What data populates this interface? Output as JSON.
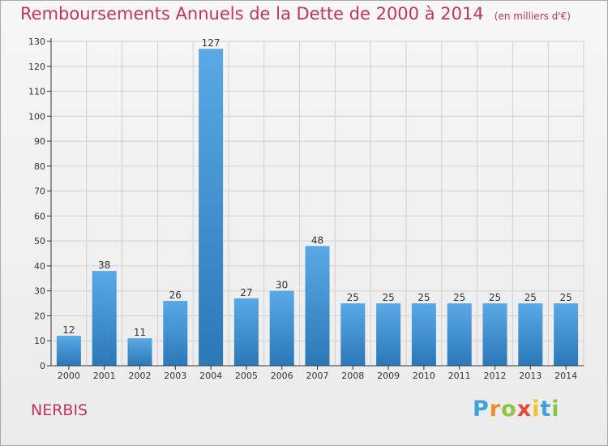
{
  "title": "Remboursements Annuels de la Dette de 2000 à 2014",
  "title_unit": "(en milliers d'€)",
  "commune": "NERBIS",
  "logo": {
    "letters": [
      "P",
      "r",
      "o",
      "x",
      "i",
      "t",
      "i"
    ],
    "colors": [
      "#3ba3d9",
      "#f28c28",
      "#8cc63f",
      "#e8483b",
      "#f7c320",
      "#3ba3d9",
      "#8cc63f"
    ]
  },
  "colors": {
    "title": "#bf3463",
    "bar_light": "#5aa9e6",
    "bar_dark": "#2b78b8",
    "grid": "#d0d0d0",
    "axis": "#333333"
  },
  "chart_data": {
    "type": "bar",
    "title": "Remboursements Annuels de la Dette de 2000 à 2014",
    "subtitle": "(en milliers d'€)",
    "xlabel": "",
    "ylabel": "",
    "categories": [
      "2000",
      "2001",
      "2002",
      "2003",
      "2004",
      "2005",
      "2006",
      "2007",
      "2008",
      "2009",
      "2010",
      "2011",
      "2012",
      "2013",
      "2014"
    ],
    "values": [
      12,
      38,
      11,
      26,
      127,
      27,
      30,
      48,
      25,
      25,
      25,
      25,
      25,
      25,
      25
    ],
    "ylim": [
      0,
      130
    ],
    "yticks": [
      0,
      10,
      20,
      30,
      40,
      50,
      60,
      70,
      80,
      90,
      100,
      110,
      120,
      130
    ],
    "grid": true,
    "legend": "none"
  }
}
